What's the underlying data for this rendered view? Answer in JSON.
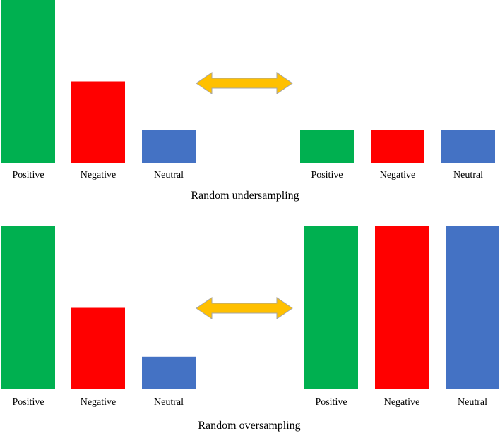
{
  "colors": {
    "positive": "#00B050",
    "negative": "#FF0000",
    "neutral": "#4472C4",
    "arrow_fill": "#FFC000",
    "arrow_stroke": "#A6A6A6"
  },
  "undersampling": {
    "caption": "Random undersampling",
    "before": [
      {
        "label": "Positive",
        "value": 1.0
      },
      {
        "label": "Negative",
        "value": 0.5
      },
      {
        "label": "Neutral",
        "value": 0.2
      }
    ],
    "after": [
      {
        "label": "Positive",
        "value": 0.2
      },
      {
        "label": "Negative",
        "value": 0.2
      },
      {
        "label": "Neutral",
        "value": 0.2
      }
    ]
  },
  "oversampling": {
    "caption": "Random oversampling",
    "before": [
      {
        "label": "Positive",
        "value": 1.0
      },
      {
        "label": "Negative",
        "value": 0.5
      },
      {
        "label": "Neutral",
        "value": 0.2
      }
    ],
    "after": [
      {
        "label": "Positive",
        "value": 1.0
      },
      {
        "label": "Negative",
        "value": 1.0
      },
      {
        "label": "Neutral",
        "value": 1.0
      }
    ]
  }
}
